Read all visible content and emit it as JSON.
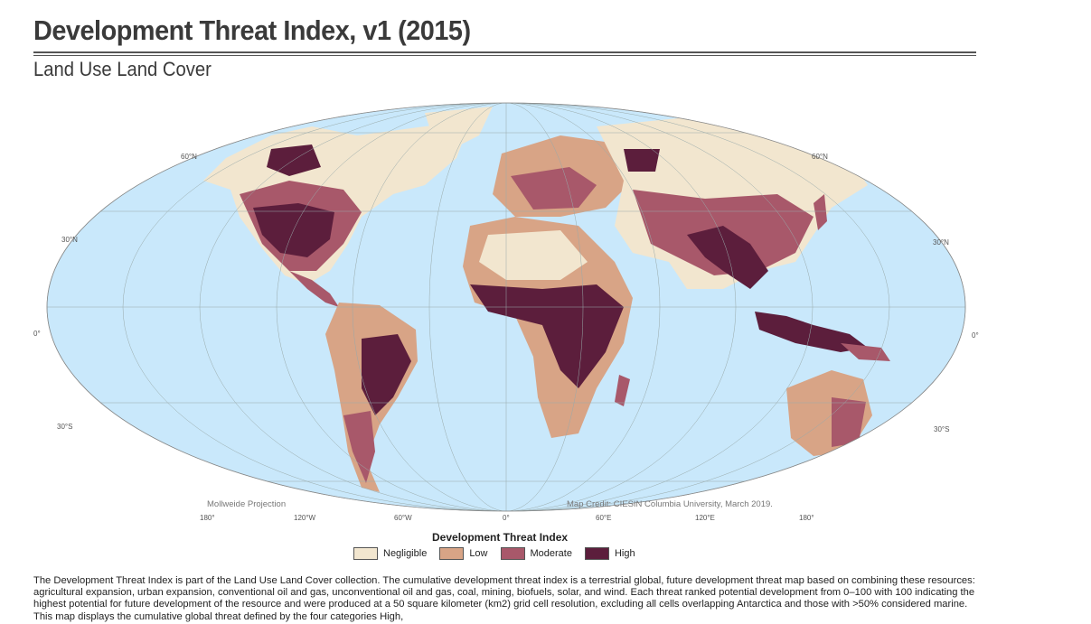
{
  "title": "Development Threat Index, v1 (2015)",
  "subtitle": "Land Use Land Cover",
  "map": {
    "projection_label": "Mollweide Projection",
    "credit": "Map Credit: CIESIN Columbia University, March 2019.",
    "lat_labels": {
      "n60": "60°N",
      "n30": "30°N",
      "eq": "0°",
      "s30": "30°S"
    },
    "lon_labels": [
      "180°",
      "120°W",
      "60°W",
      "0°",
      "60°E",
      "120°E",
      "180°"
    ],
    "colors": {
      "ocean": "#c9e8fb",
      "negligible": "#f2e6cf",
      "low": "#d8a486",
      "moderate": "#a8586a",
      "high": "#5c1e3c"
    }
  },
  "legend": {
    "title": "Development Threat Index",
    "items": [
      {
        "label": "Negligible",
        "color": "#f2e6cf"
      },
      {
        "label": "Low",
        "color": "#d8a486"
      },
      {
        "label": "Moderate",
        "color": "#a8586a"
      },
      {
        "label": "High",
        "color": "#5c1e3c"
      }
    ]
  },
  "description": "The Development Threat Index is part of the Land Use Land Cover collection. The cumulative development threat index is a terrestrial global, future development threat map based on combining these resources: agricultural expansion, urban expansion, conventional oil and gas, unconventional oil and gas, coal, mining, biofuels, solar, and wind. Each threat ranked potential development from 0–100 with 100 indicating the highest potential for future development of the resource and were produced at a 50 square kilometer (km2) grid cell resolution, excluding all cells overlapping Antarctica and those with >50% considered marine. This map displays the cumulative global threat defined by the four categories High,"
}
